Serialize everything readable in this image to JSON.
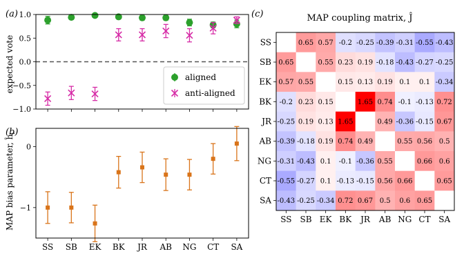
{
  "panels": {
    "a": {
      "label": "(a)"
    },
    "b": {
      "label": "(b)"
    },
    "c": {
      "label": "(c)"
    }
  },
  "chart_data": [
    {
      "type": "scatter",
      "panel": "(a)",
      "categories": [
        "SS",
        "SB",
        "EK",
        "BK",
        "JR",
        "AB",
        "NG",
        "CT",
        "SA"
      ],
      "ylabel": "expected vote",
      "ylim": [
        -1.0,
        1.0
      ],
      "yticks": [
        "1.0",
        "0.5",
        "0.0",
        "−0.5",
        "−1.0"
      ],
      "ytick_values": [
        1.0,
        0.5,
        0.0,
        -0.5,
        -1.0
      ],
      "reference_line": 0.0,
      "legend_position": "lower-right",
      "series": [
        {
          "name": "aligned",
          "marker": "circle",
          "color": "#2ca02c",
          "values": [
            0.88,
            0.94,
            0.98,
            0.95,
            0.93,
            0.93,
            0.83,
            0.78,
            0.8
          ],
          "errors": [
            0.08,
            0.03,
            0.02,
            0.03,
            0.05,
            0.05,
            0.07,
            0.06,
            0.08
          ]
        },
        {
          "name": "anti-aligned",
          "marker": "x",
          "color": "#d62ba6",
          "values": [
            -0.78,
            -0.66,
            -0.68,
            0.57,
            0.57,
            0.65,
            0.56,
            0.71,
            0.88
          ],
          "errors": [
            0.14,
            0.14,
            0.14,
            0.13,
            0.13,
            0.14,
            0.14,
            0.12,
            0.07
          ]
        }
      ]
    },
    {
      "type": "scatter",
      "panel": "(b)",
      "categories": [
        "SS",
        "SB",
        "EK",
        "BK",
        "JR",
        "AB",
        "NG",
        "CT",
        "SA"
      ],
      "ylabel": "MAP bias parameter, ĥ",
      "ylabel_sub": "i",
      "ylim": [
        -1.5,
        0.3
      ],
      "yticks": [
        "0",
        "−1"
      ],
      "ytick_values": [
        0,
        -1
      ],
      "marker": "square",
      "color": "#d9741a",
      "values": [
        -1.0,
        -1.0,
        -1.26,
        -0.42,
        -0.34,
        -0.46,
        -0.46,
        -0.2,
        0.05
      ],
      "errors": [
        0.26,
        0.25,
        0.3,
        0.26,
        0.25,
        0.26,
        0.25,
        0.25,
        0.28
      ]
    },
    {
      "type": "heatmap",
      "panel": "(c)",
      "title": "MAP coupling matrix, Ĵ",
      "rows": [
        "SS",
        "SB",
        "EK",
        "BK",
        "JR",
        "AB",
        "NG",
        "CT",
        "SA"
      ],
      "columns": [
        "SS",
        "SB",
        "EK",
        "BK",
        "JR",
        "AB",
        "NG",
        "CT",
        "SA"
      ],
      "colormap": "bwr",
      "vmin": -1.65,
      "vmax": 1.65,
      "values": [
        [
          null,
          0.65,
          0.57,
          -0.2,
          -0.25,
          -0.39,
          -0.31,
          -0.55,
          -0.43
        ],
        [
          0.65,
          null,
          0.55,
          0.23,
          0.19,
          -0.18,
          -0.43,
          -0.27,
          -0.25
        ],
        [
          0.57,
          0.55,
          null,
          0.15,
          0.13,
          0.19,
          0.1,
          0.1,
          -0.34
        ],
        [
          -0.2,
          0.23,
          0.15,
          null,
          1.65,
          0.74,
          -0.1,
          -0.13,
          0.72
        ],
        [
          -0.25,
          0.19,
          0.13,
          1.65,
          null,
          0.49,
          -0.36,
          -0.15,
          0.67
        ],
        [
          -0.39,
          -0.18,
          0.19,
          0.74,
          0.49,
          null,
          0.55,
          0.56,
          0.5
        ],
        [
          -0.31,
          -0.43,
          0.1,
          -0.1,
          -0.36,
          0.55,
          null,
          0.66,
          0.6
        ],
        [
          -0.55,
          -0.27,
          0.1,
          -0.13,
          -0.15,
          0.56,
          0.66,
          null,
          0.65
        ],
        [
          -0.43,
          -0.25,
          -0.34,
          0.72,
          0.67,
          0.5,
          0.6,
          0.65,
          null
        ]
      ]
    }
  ]
}
